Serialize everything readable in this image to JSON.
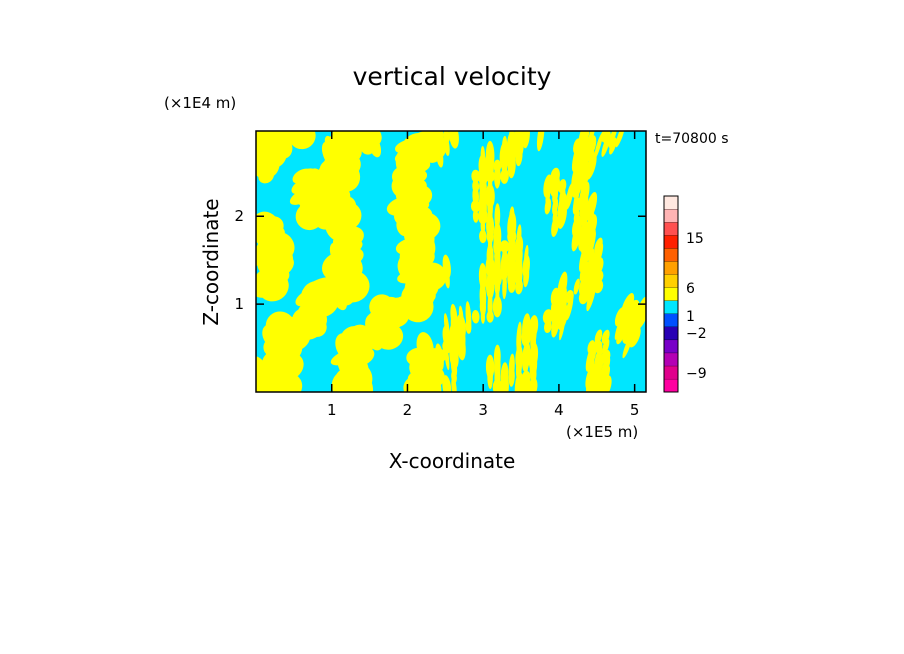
{
  "chart_data": {
    "type": "heatmap",
    "title": "vertical velocity",
    "xlabel": "X-coordinate",
    "ylabel": "Z-coordinate",
    "x_units": "(×1E5 m)",
    "y_units": "(×1E4 m)",
    "time_label": "t=70800 s",
    "xlim": [
      0,
      5.15
    ],
    "ylim": [
      0,
      2.97
    ],
    "x_ticks": [
      1,
      2,
      3,
      4,
      5
    ],
    "x_tick_labels": [
      "1",
      "2",
      "3",
      "4",
      "5"
    ],
    "y_ticks": [
      1,
      2
    ],
    "y_tick_labels": [
      "1",
      "2"
    ],
    "field_colors": {
      "negative": "#00e6ff",
      "positive": "#ffff00"
    },
    "colorbar": {
      "levels": [
        {
          "value": -12,
          "color": "#ff00a0"
        },
        {
          "value": -9,
          "color": "#e0008c"
        },
        {
          "value": -6,
          "color": "#b400b4"
        },
        {
          "value": -4,
          "color": "#7800c8"
        },
        {
          "value": -3,
          "color": "#2800b4"
        },
        {
          "value": -2,
          "color": "#0050ff"
        },
        {
          "value": -1,
          "color": "#00e6ff"
        },
        {
          "value": 0,
          "color": "#ffff00"
        },
        {
          "value": 1,
          "color": "#ffd000"
        },
        {
          "value": 2,
          "color": "#ffa000"
        },
        {
          "value": 4,
          "color": "#ff6000"
        },
        {
          "value": 6,
          "color": "#ff2000"
        },
        {
          "value": 10,
          "color": "#ff5050"
        },
        {
          "value": 15,
          "color": "#ffb4b4"
        },
        {
          "value": 20,
          "color": "#ffe8e0"
        }
      ],
      "tick_labels": [
        "15",
        "6",
        "1",
        "-2",
        "-9"
      ]
    }
  }
}
